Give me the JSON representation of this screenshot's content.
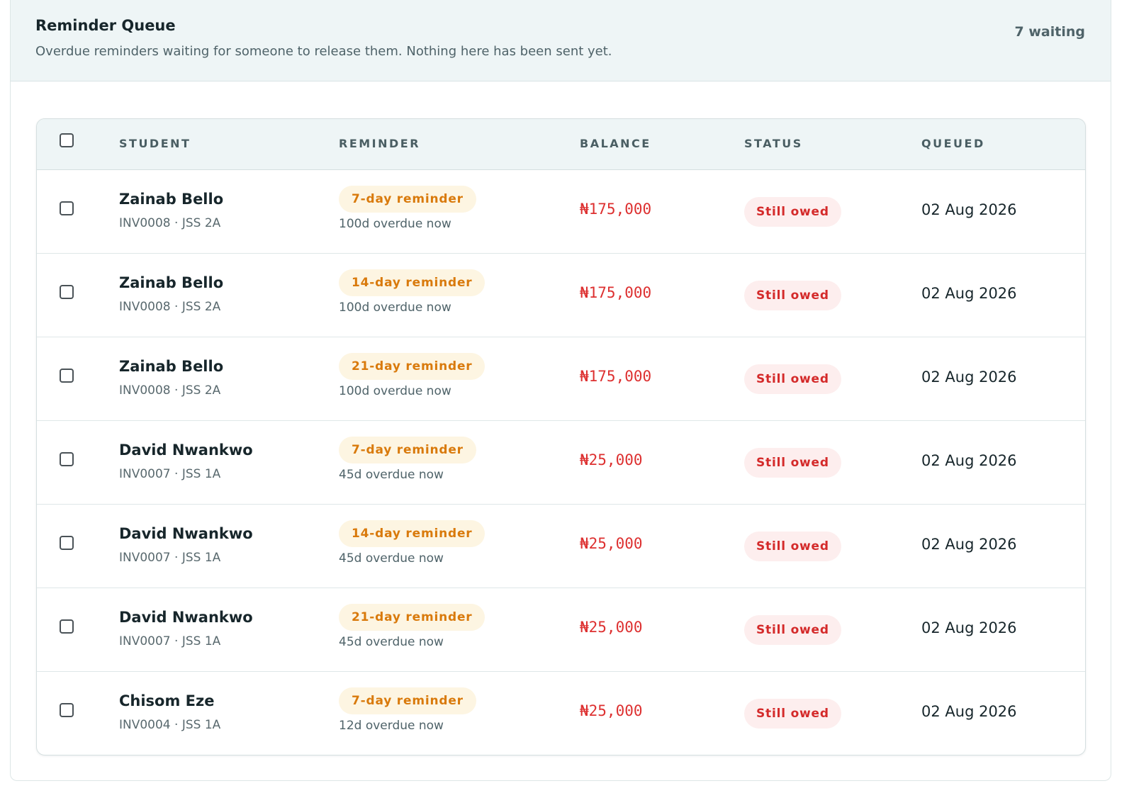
{
  "header": {
    "title": "Reminder Queue",
    "subtitle": "Overdue reminders waiting for someone to release them. Nothing here has been sent yet.",
    "waiting": "7 waiting"
  },
  "table": {
    "columns": {
      "student": "STUDENT",
      "reminder": "REMINDER",
      "balance": "BALANCE",
      "status": "STATUS",
      "queued": "QUEUED"
    },
    "rows": [
      {
        "name": "Zainab Bello",
        "meta": "INV0008 · JSS 2A",
        "reminder": "7-day reminder",
        "overdue": "100d overdue now",
        "balance": "₦175,000",
        "status": "Still owed",
        "queued": "02 Aug 2026"
      },
      {
        "name": "Zainab Bello",
        "meta": "INV0008 · JSS 2A",
        "reminder": "14-day reminder",
        "overdue": "100d overdue now",
        "balance": "₦175,000",
        "status": "Still owed",
        "queued": "02 Aug 2026"
      },
      {
        "name": "Zainab Bello",
        "meta": "INV0008 · JSS 2A",
        "reminder": "21-day reminder",
        "overdue": "100d overdue now",
        "balance": "₦175,000",
        "status": "Still owed",
        "queued": "02 Aug 2026"
      },
      {
        "name": "David Nwankwo",
        "meta": "INV0007 · JSS 1A",
        "reminder": "7-day reminder",
        "overdue": "45d overdue now",
        "balance": "₦25,000",
        "status": "Still owed",
        "queued": "02 Aug 2026"
      },
      {
        "name": "David Nwankwo",
        "meta": "INV0007 · JSS 1A",
        "reminder": "14-day reminder",
        "overdue": "45d overdue now",
        "balance": "₦25,000",
        "status": "Still owed",
        "queued": "02 Aug 2026"
      },
      {
        "name": "David Nwankwo",
        "meta": "INV0007 · JSS 1A",
        "reminder": "21-day reminder",
        "overdue": "45d overdue now",
        "balance": "₦25,000",
        "status": "Still owed",
        "queued": "02 Aug 2026"
      },
      {
        "name": "Chisom Eze",
        "meta": "INV0004 · JSS 1A",
        "reminder": "7-day reminder",
        "overdue": "12d overdue now",
        "balance": "₦25,000",
        "status": "Still owed",
        "queued": "02 Aug 2026"
      }
    ]
  },
  "colors": {
    "reminder_badge_text": "#d97a0c",
    "reminder_badge_bg": "#fdf5e2",
    "balance_text": "#dd3030",
    "status_badge_text": "#d42a2a",
    "status_badge_bg": "#fdeeee",
    "header_bg": "#eef5f6"
  }
}
